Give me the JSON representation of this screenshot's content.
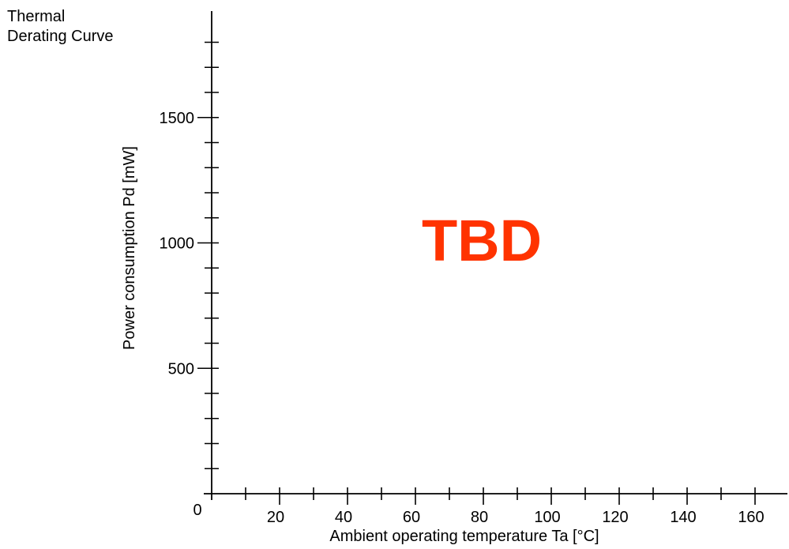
{
  "page": {
    "title_line1": "Thermal",
    "title_line2": "Derating Curve"
  },
  "chart_data": {
    "type": "line",
    "title": "Thermal Derating Curve",
    "xlabel": "Ambient operating temperature  Ta  [°C]",
    "ylabel": "Power consumption  Pd  [mW]",
    "xlim": [
      0,
      170
    ],
    "ylim": [
      0,
      1880
    ],
    "x_ticks": [
      20,
      40,
      60,
      80,
      100,
      120,
      140,
      160
    ],
    "y_ticks": [
      500,
      1000,
      1500
    ],
    "origin_label": "0",
    "x_minor_step": 10,
    "y_minor_step": 100,
    "grid": false,
    "series": [],
    "annotation": "TBD",
    "annotation_color": "#ff3300"
  }
}
